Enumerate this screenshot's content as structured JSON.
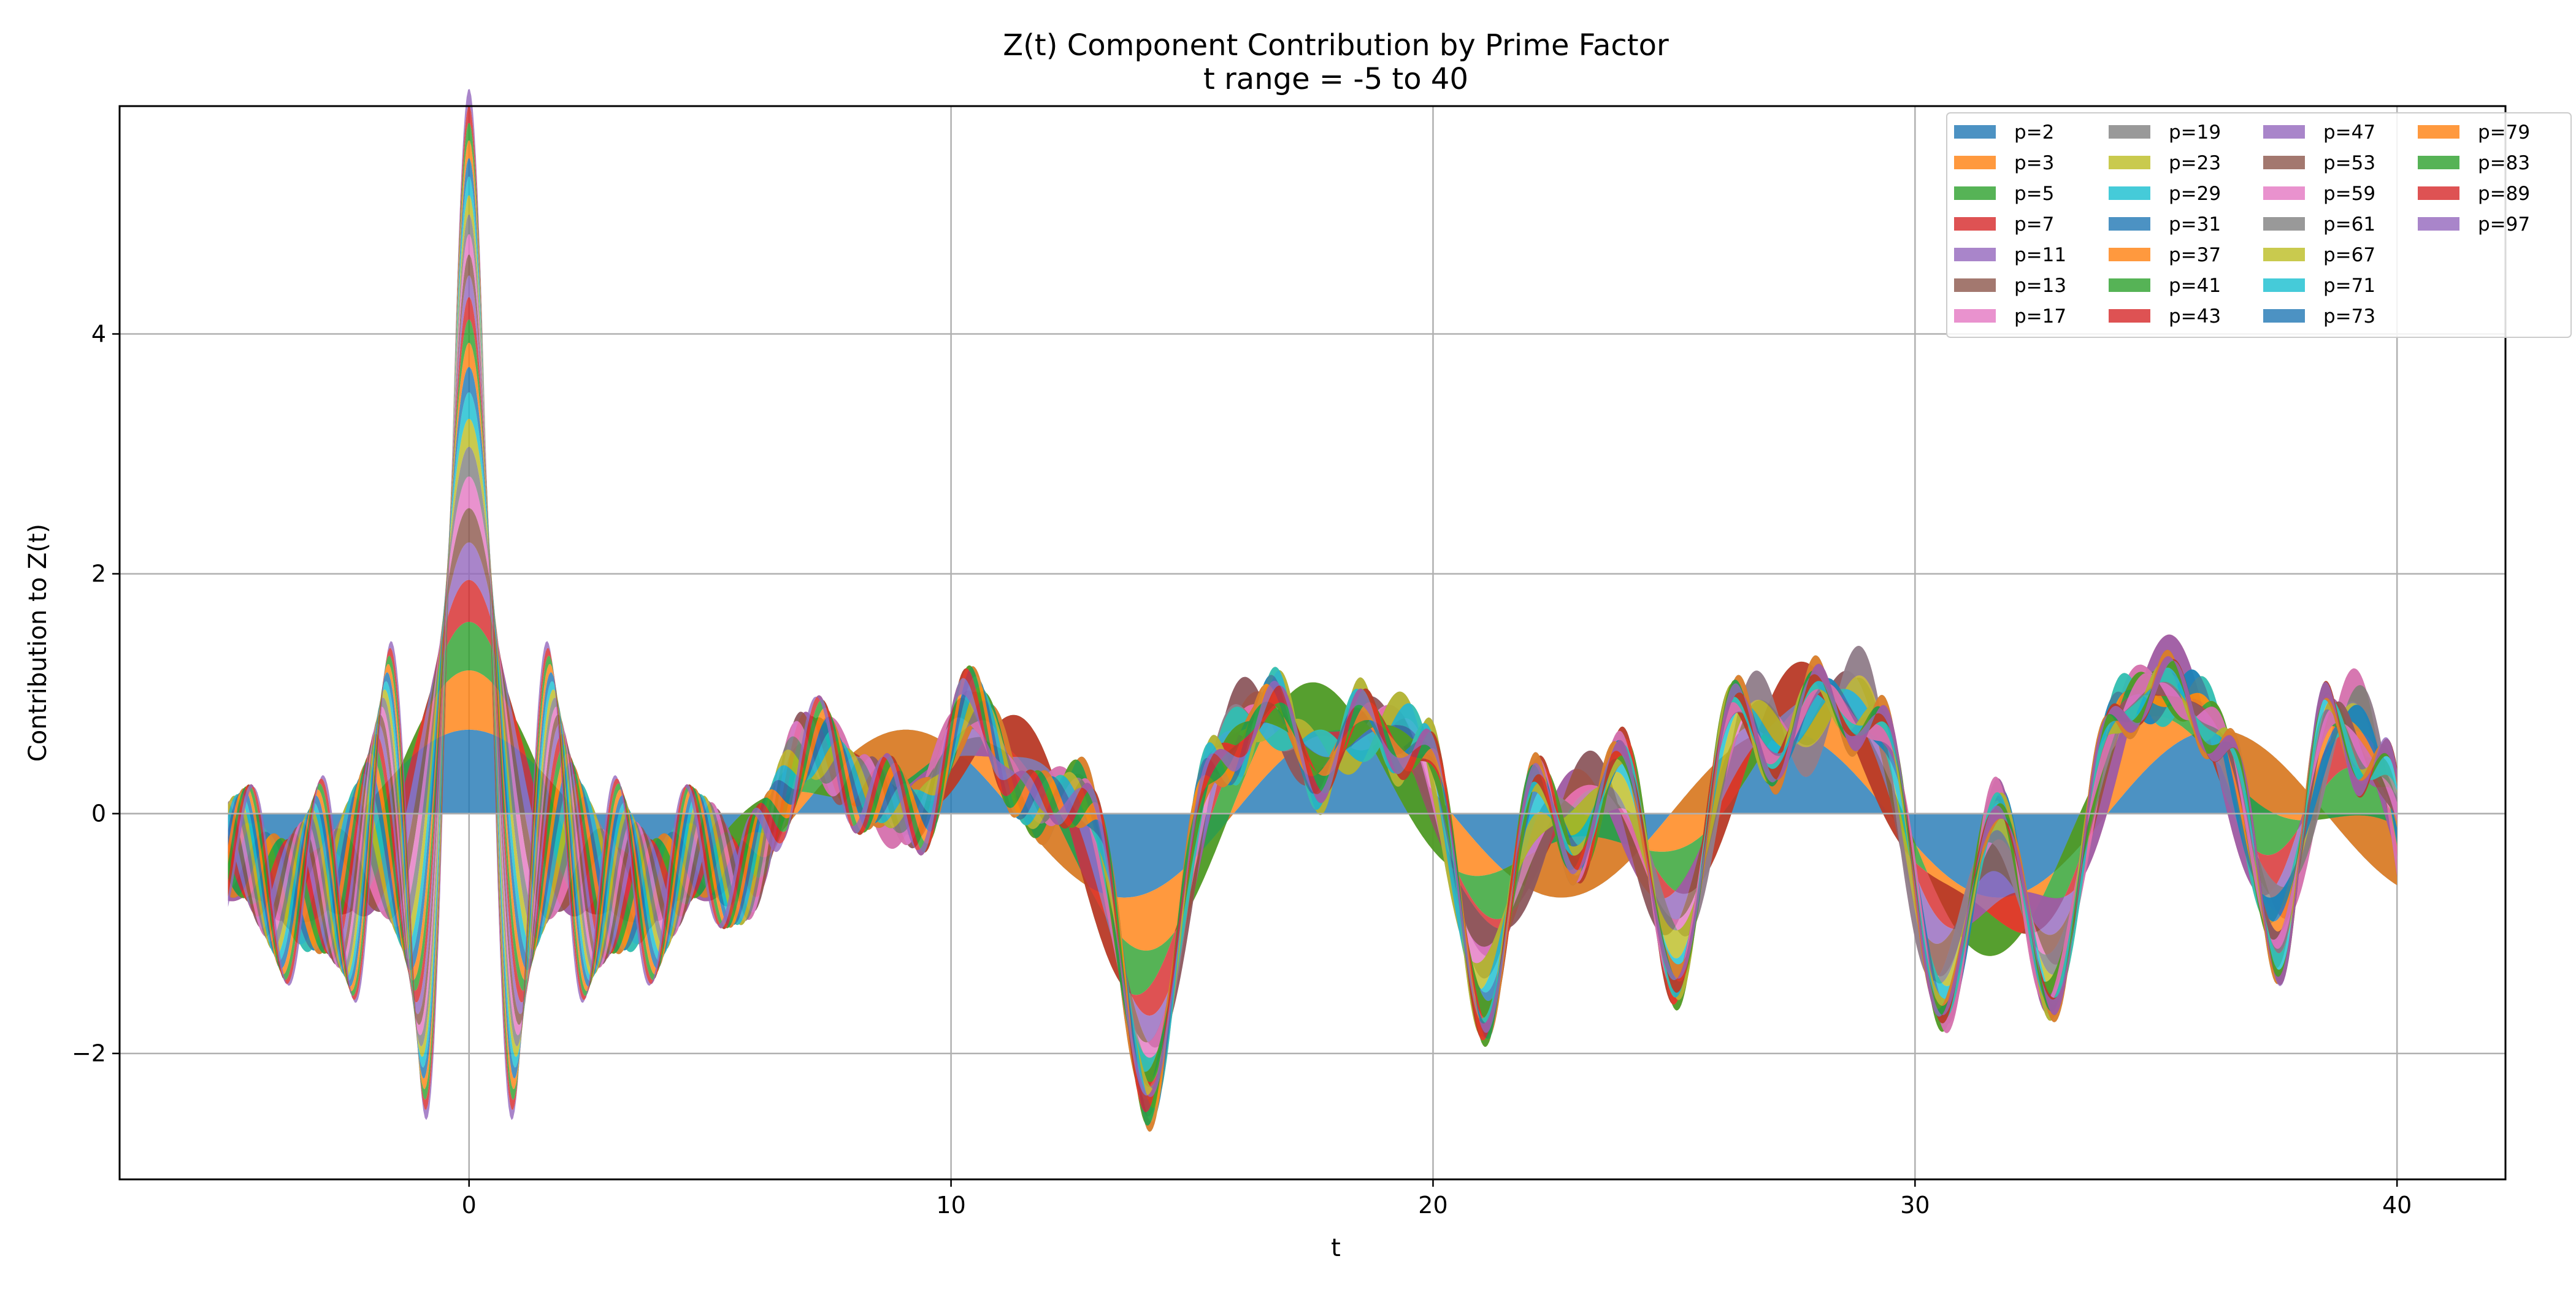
{
  "chart_data": {
    "type": "area",
    "title": "Z(t) Component Contribution by Prime Factor",
    "subtitle": "t range = -5 to 40",
    "xlabel": "t",
    "ylabel": "Contribution to Z(t)",
    "xlim": [
      -7.25,
      42.25
    ],
    "ylim": [
      -3.05,
      5.9
    ],
    "x_range": [
      -5,
      40
    ],
    "xticks": [
      0,
      10,
      20,
      30,
      40
    ],
    "xtick_labels": [
      "0",
      "10",
      "20",
      "30",
      "40"
    ],
    "yticks": [
      -2,
      0,
      2,
      4
    ],
    "ytick_labels": [
      "−2",
      "0",
      "2",
      "4"
    ],
    "grid": true,
    "stacked": true,
    "legend_position": "top-right",
    "legend_columns": 4,
    "series": [
      {
        "name": "p=2",
        "color": "#1f77b4"
      },
      {
        "name": "p=3",
        "color": "#ff7f0e"
      },
      {
        "name": "p=5",
        "color": "#2ca02c"
      },
      {
        "name": "p=7",
        "color": "#d62728"
      },
      {
        "name": "p=11",
        "color": "#9467bd"
      },
      {
        "name": "p=13",
        "color": "#8c564b"
      },
      {
        "name": "p=17",
        "color": "#e377c2"
      },
      {
        "name": "p=19",
        "color": "#7f7f7f"
      },
      {
        "name": "p=23",
        "color": "#bcbd22"
      },
      {
        "name": "p=29",
        "color": "#17becf"
      },
      {
        "name": "p=31",
        "color": "#1f77b4"
      },
      {
        "name": "p=37",
        "color": "#ff7f0e"
      },
      {
        "name": "p=41",
        "color": "#2ca02c"
      },
      {
        "name": "p=43",
        "color": "#d62728"
      },
      {
        "name": "p=47",
        "color": "#9467bd"
      },
      {
        "name": "p=53",
        "color": "#8c564b"
      },
      {
        "name": "p=59",
        "color": "#e377c2"
      },
      {
        "name": "p=61",
        "color": "#7f7f7f"
      },
      {
        "name": "p=67",
        "color": "#bcbd22"
      },
      {
        "name": "p=71",
        "color": "#17becf"
      },
      {
        "name": "p=73",
        "color": "#1f77b4"
      },
      {
        "name": "p=79",
        "color": "#ff7f0e"
      },
      {
        "name": "p=83",
        "color": "#2ca02c"
      },
      {
        "name": "p=89",
        "color": "#d62728"
      },
      {
        "name": "p=97",
        "color": "#9467bd"
      }
    ],
    "value_formula": "contribution_k(t) = 0.7 * cos(t * ln(p_k)) / sqrt(k), stacked cumulatively"
  }
}
